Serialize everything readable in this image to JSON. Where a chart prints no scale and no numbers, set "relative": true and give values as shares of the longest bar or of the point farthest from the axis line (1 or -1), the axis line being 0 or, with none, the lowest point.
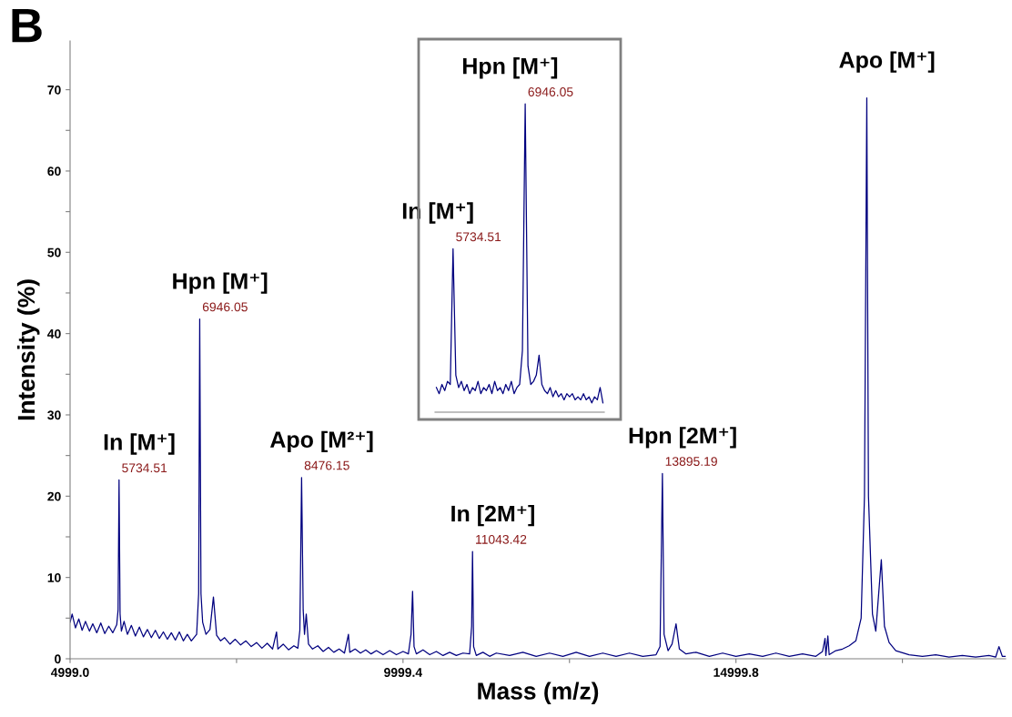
{
  "chart_data": [
    {
      "type": "line",
      "title": "B",
      "xlabel": "Mass (m/z)",
      "ylabel": "Intensity (%)",
      "xlim": [
        4999.0,
        19050
      ],
      "xticks": [
        {
          "value": 4999.0,
          "label": "4999.0"
        },
        {
          "value": 7499.2,
          "label": null
        },
        {
          "value": 9999.4,
          "label": "9999.4"
        },
        {
          "value": 12499.6,
          "label": null
        },
        {
          "value": 14999.8,
          "label": "14999.8"
        },
        {
          "value": 17500,
          "label": null
        }
      ],
      "ylim": [
        0,
        76
      ],
      "yticks": [
        0,
        {
          "value": 5,
          "label": null
        },
        10,
        {
          "value": 15,
          "label": null
        },
        20,
        {
          "value": 25,
          "label": null
        },
        30,
        {
          "value": 35,
          "label": null
        },
        40,
        {
          "value": 45,
          "label": null
        },
        50,
        {
          "value": 55,
          "label": null
        },
        60,
        {
          "value": 65,
          "label": null
        },
        70
      ],
      "grid": false,
      "legend": false,
      "marker": "none",
      "line_style": "solid",
      "series": [
        {
          "color": "#00007f",
          "x": [
            5000,
            5030,
            5080,
            5130,
            5180,
            5230,
            5290,
            5340,
            5400,
            5460,
            5520,
            5580,
            5640,
            5700,
            5720,
            5734.51,
            5750,
            5770,
            5810,
            5860,
            5920,
            5980,
            6040,
            6100,
            6160,
            6220,
            6280,
            6340,
            6400,
            6460,
            6520,
            6580,
            6640,
            6700,
            6760,
            6820,
            6900,
            6930,
            6946.05,
            6965,
            6990,
            7040,
            7100,
            7152,
            7200,
            7260,
            7320,
            7400,
            7480,
            7560,
            7640,
            7720,
            7800,
            7880,
            7960,
            8040,
            8100,
            8120,
            8200,
            8280,
            8360,
            8420,
            8450,
            8476.15,
            8500,
            8520,
            8546,
            8580,
            8640,
            8720,
            8800,
            8880,
            8960,
            9040,
            9120,
            9180,
            9200,
            9280,
            9360,
            9440,
            9520,
            9600,
            9700,
            9800,
            9900,
            10000,
            10080,
            10120,
            10143,
            10165,
            10200,
            10300,
            10400,
            10500,
            10600,
            10700,
            10800,
            10900,
            11000,
            11030,
            11043.42,
            11060,
            11100,
            11200,
            11300,
            11400,
            11600,
            11800,
            12000,
            12200,
            12400,
            12600,
            12800,
            13000,
            13200,
            13400,
            13600,
            13800,
            13860,
            13895.19,
            13920,
            13980,
            14040,
            14100,
            14150,
            14250,
            14400,
            14600,
            14800,
            15000,
            15200,
            15400,
            15600,
            15800,
            16000,
            16200,
            16300,
            16338,
            16350,
            16380,
            16400,
            16500,
            16600,
            16700,
            16800,
            16880,
            16930,
            16965,
            16990,
            17050,
            17100,
            17183,
            17230,
            17300,
            17400,
            17600,
            17800,
            18000,
            18200,
            18400,
            18600,
            18800,
            18900,
            18950,
            19000,
            19050
          ],
          "values": [
            4.5,
            5.5,
            3.8,
            4.9,
            3.5,
            4.6,
            3.4,
            4.3,
            3.2,
            4.4,
            3.1,
            4.0,
            3.2,
            4.2,
            6.0,
            22.0,
            5.5,
            3.4,
            4.6,
            3.0,
            4.1,
            2.8,
            3.9,
            2.7,
            3.6,
            2.6,
            3.5,
            2.5,
            3.3,
            2.4,
            3.2,
            2.3,
            3.3,
            2.2,
            3.0,
            2.2,
            3.0,
            8.0,
            41.8,
            8.0,
            4.5,
            3.0,
            3.6,
            7.6,
            2.9,
            2.2,
            2.6,
            1.8,
            2.4,
            1.7,
            2.2,
            1.5,
            2.0,
            1.3,
            1.9,
            1.2,
            3.3,
            1.2,
            1.8,
            1.1,
            1.6,
            1.3,
            3.5,
            22.3,
            6.0,
            3.0,
            5.5,
            1.8,
            1.2,
            1.6,
            0.9,
            1.4,
            0.8,
            1.2,
            0.7,
            3.0,
            0.8,
            1.2,
            0.7,
            1.1,
            0.6,
            1.0,
            0.5,
            1.0,
            0.5,
            0.9,
            0.6,
            3.0,
            8.3,
            1.5,
            0.6,
            1.1,
            0.5,
            0.9,
            0.4,
            0.8,
            0.4,
            0.7,
            0.6,
            4.0,
            13.2,
            1.5,
            0.4,
            0.8,
            0.3,
            0.7,
            0.4,
            0.8,
            0.3,
            0.7,
            0.3,
            0.8,
            0.3,
            0.7,
            0.3,
            0.7,
            0.3,
            0.5,
            1.5,
            22.8,
            3.0,
            1.0,
            1.8,
            4.3,
            1.2,
            0.6,
            0.8,
            0.3,
            0.7,
            0.3,
            0.6,
            0.3,
            0.7,
            0.3,
            0.6,
            0.3,
            0.9,
            2.5,
            0.4,
            2.8,
            0.5,
            1.0,
            1.2,
            1.6,
            2.2,
            5.0,
            20.0,
            69.0,
            20.0,
            5.5,
            3.4,
            12.2,
            4.0,
            2.0,
            1.0,
            0.5,
            0.3,
            0.5,
            0.2,
            0.4,
            0.2,
            0.4,
            0.2,
            1.5,
            0.3,
            0.3
          ]
        }
      ],
      "annotations": [
        {
          "text": "In [M⁺]",
          "x": 5734.51,
          "y": 22.0
        },
        {
          "text": "5734.51",
          "x": 5734.51,
          "y": 22.0
        },
        {
          "text": "Hpn [M⁺]",
          "x": 6946.05,
          "y": 41.8
        },
        {
          "text": "6946.05",
          "x": 6946.05,
          "y": 41.8
        },
        {
          "text": "Apo [M²⁺]",
          "x": 8476.15,
          "y": 22.3
        },
        {
          "text": "8476.15",
          "x": 8476.15,
          "y": 22.3
        },
        {
          "text": "In [2M⁺]",
          "x": 11043.42,
          "y": 13.2
        },
        {
          "text": "11043.42",
          "x": 11043.42,
          "y": 13.2
        },
        {
          "text": "Hpn [2M⁺]",
          "x": 13895.19,
          "y": 22.8
        },
        {
          "text": "13895.19",
          "x": 13895.19,
          "y": 22.8
        },
        {
          "text": "Apo [M⁺]",
          "x": 16965,
          "y": 69.0
        }
      ]
    },
    {
      "type": "line",
      "relative": true,
      "legend": false,
      "marker": "none",
      "line_style": "solid",
      "categories": [
        null,
        null,
        null,
        null,
        null,
        null,
        null,
        null,
        null,
        null,
        null,
        null,
        null,
        null,
        null,
        null,
        null,
        null,
        null,
        null,
        null,
        null,
        null,
        null,
        null,
        null,
        null,
        null,
        null,
        null,
        null,
        null,
        null,
        null,
        null,
        null,
        null,
        null,
        null,
        null,
        null,
        null,
        null,
        null,
        null,
        null,
        null,
        null,
        null,
        null,
        null,
        null,
        null,
        null,
        null,
        null,
        null,
        null,
        null,
        null,
        null
      ],
      "series": [
        {
          "color": "#00007f",
          "values": [
            0.08,
            0.06,
            0.09,
            0.07,
            0.1,
            0.09,
            0.53,
            0.12,
            0.08,
            0.1,
            0.07,
            0.09,
            0.06,
            0.08,
            0.07,
            0.1,
            0.06,
            0.08,
            0.07,
            0.09,
            0.06,
            0.1,
            0.07,
            0.08,
            0.06,
            0.09,
            0.07,
            0.1,
            0.06,
            0.08,
            0.09,
            0.2,
            1.0,
            0.15,
            0.09,
            0.1,
            0.12,
            0.185,
            0.09,
            0.07,
            0.06,
            0.08,
            0.05,
            0.07,
            0.05,
            0.06,
            0.04,
            0.06,
            0.05,
            0.06,
            0.04,
            0.05,
            0.04,
            0.06,
            0.04,
            0.05,
            0.03,
            0.05,
            0.04,
            0.08,
            0.03
          ]
        }
      ],
      "annotations": [
        "Hpn [M⁺]",
        "6946.05",
        "In [M⁺]",
        "5734.51"
      ]
    }
  ]
}
